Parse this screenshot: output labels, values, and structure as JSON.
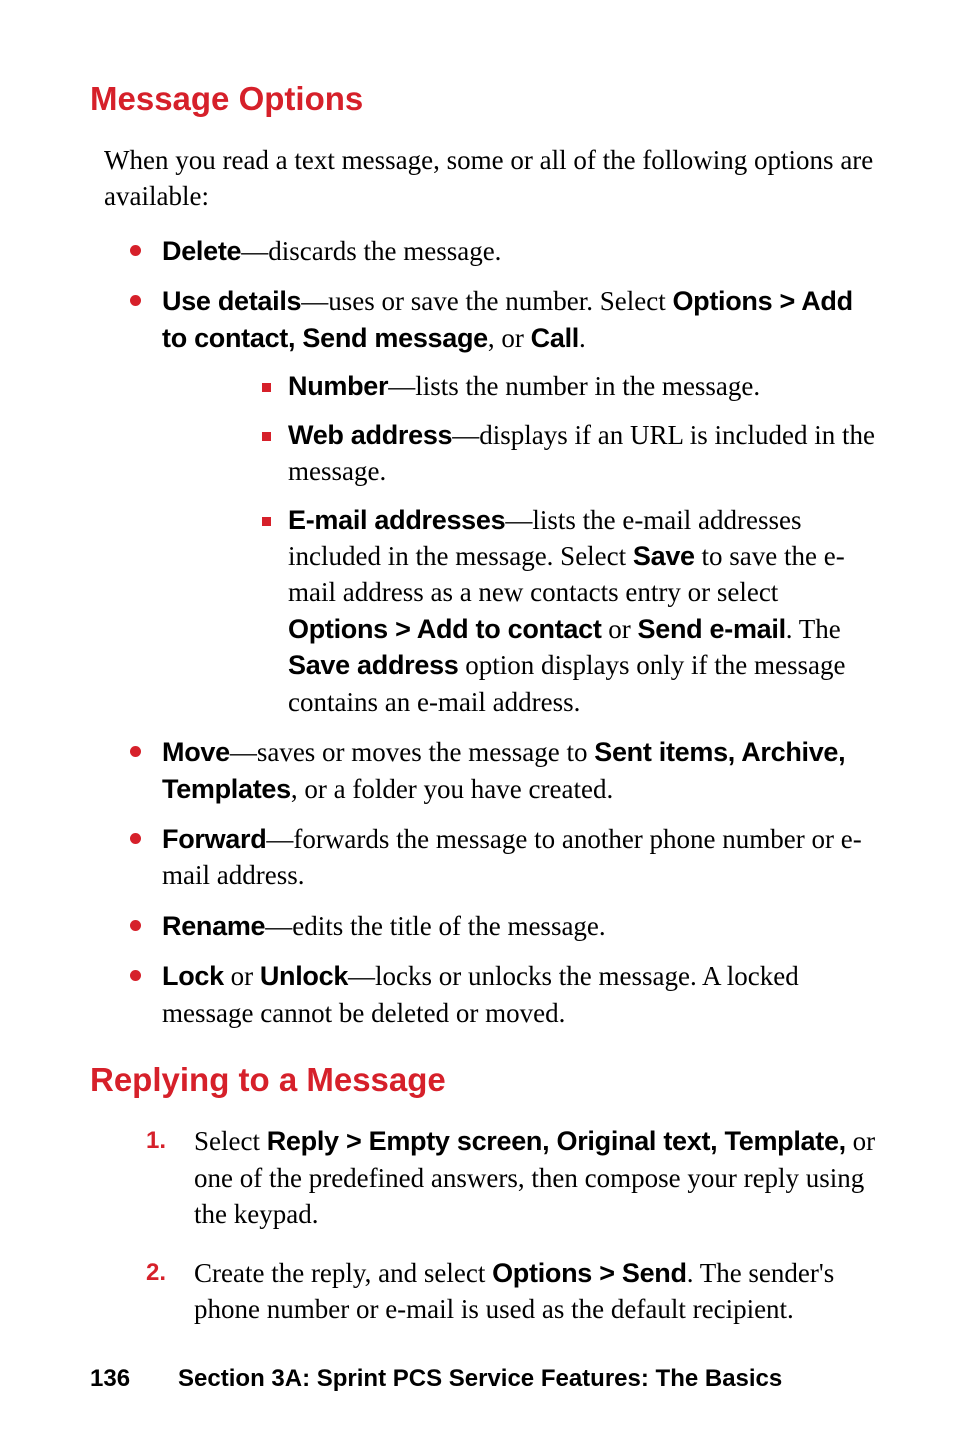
{
  "colors": {
    "accent": "#d6202a",
    "text": "#000000",
    "background": "#ffffff"
  },
  "typography": {
    "heading_font": "Arial",
    "heading_size_pt": 24,
    "body_font": "Georgia",
    "body_size_pt": 20,
    "bold_label_font": "Arial Narrow",
    "footer_font": "Arial",
    "footer_size_pt": 18
  },
  "section1": {
    "heading": "Message Options",
    "intro": "When you read a text message, some or all of the following options are available:",
    "items": [
      {
        "label": "Delete",
        "text": "—discards the message."
      },
      {
        "label": "Use details",
        "text_part1": "—uses or save the number. Select ",
        "bold1": "Options > Add to contact, Send message",
        "text_part2": ", or ",
        "bold2": "Call",
        "text_part3": ".",
        "sub": [
          {
            "label": "Number",
            "text": "—lists the number in the message."
          },
          {
            "label": "Web address",
            "text": "—displays if an URL is included in the message."
          },
          {
            "label": "E-mail addresses",
            "text_part1": "—lists the e-mail addresses included in the message. Select ",
            "bold1": "Save",
            "text_part2": " to save the e-mail address as a new contacts entry or select ",
            "bold2": "Options > Add to contact",
            "text_part3": " or ",
            "bold3": "Send e-mail",
            "text_part4": ". The ",
            "bold4": "Save address",
            "text_part5": " option displays only if the message contains an e-mail address."
          }
        ]
      },
      {
        "label": "Move",
        "text_part1": "—saves or moves the message to ",
        "bold1": "Sent items, Archive, Templates",
        "text_part2": ", or a folder you have created."
      },
      {
        "label": "Forward",
        "text": "—forwards the message to another phone number or e-mail address."
      },
      {
        "label": "Rename",
        "text": "—edits the title of the message."
      },
      {
        "label": "Lock",
        "mid": " or ",
        "label2": "Unlock",
        "text": "—locks or unlocks the message. A locked message cannot be deleted or moved."
      }
    ]
  },
  "section2": {
    "heading": "Replying to a Message",
    "steps": [
      {
        "num": "1.",
        "text_part1": "Select ",
        "bold1": "Reply > Empty screen, Original text, Template,",
        "text_part2": " or one of the predefined answers, then compose your reply using the keypad."
      },
      {
        "num": "2.",
        "text_part1": "Create the reply, and select ",
        "bold1": "Options > Send",
        "text_part2": ". The sender's phone number or e-mail is used as the default recipient."
      }
    ]
  },
  "footer": {
    "page": "136",
    "section": "Section 3A: Sprint PCS Service Features: The Basics"
  }
}
